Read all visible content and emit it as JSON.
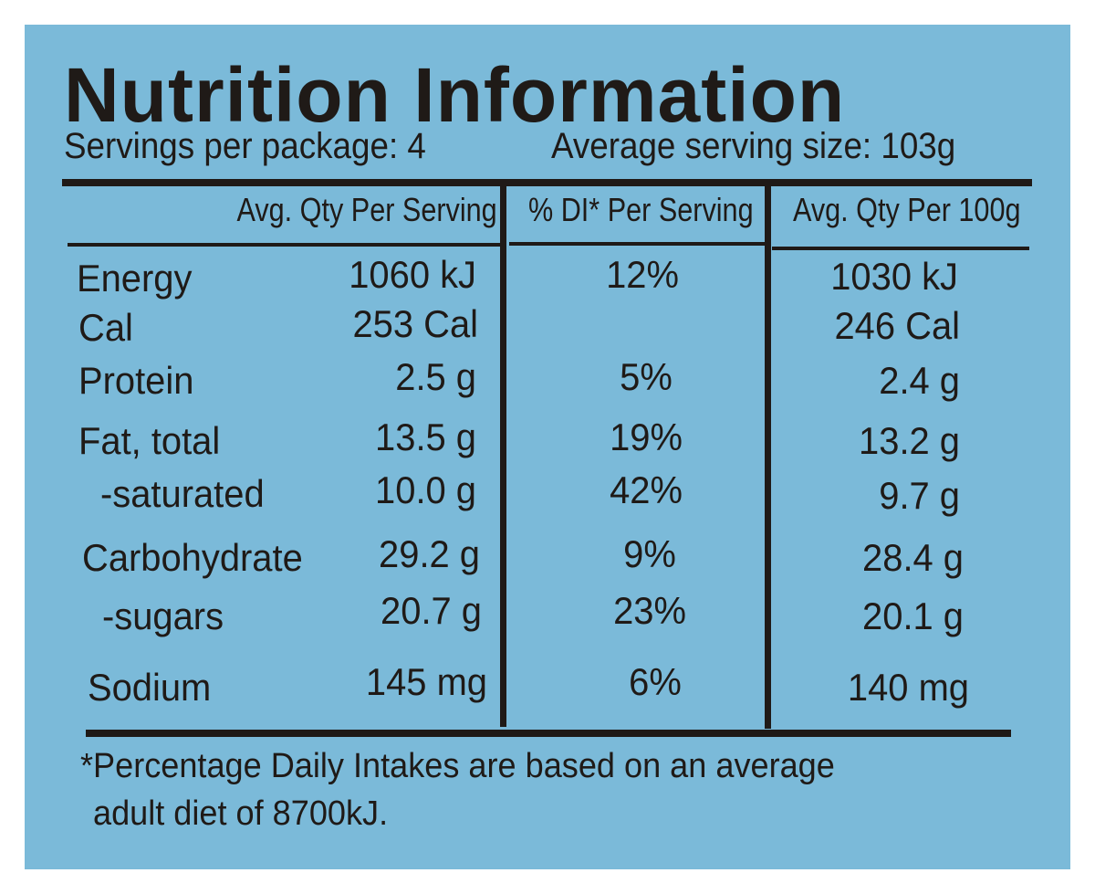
{
  "label": {
    "title": "Nutrition Information",
    "servings_per_package": "Servings per package: 4",
    "serving_size": "Average serving size: 103g",
    "columns": [
      "Avg. Qty Per Serving",
      "% DI* Per Serving",
      "Avg. Qty Per 100g"
    ],
    "rows": [
      {
        "name": "Energy",
        "per_serving": "1060 kJ",
        "di": "12%",
        "per_100g": "1030 kJ"
      },
      {
        "name": "Cal",
        "per_serving": "253 Cal",
        "di": "",
        "per_100g": "246 Cal"
      },
      {
        "name": "Protein",
        "per_serving": "2.5 g",
        "di": "5%",
        "per_100g": "2.4 g"
      },
      {
        "name": "Fat, total",
        "per_serving": "13.5 g",
        "di": "19%",
        "per_100g": "13.2 g"
      },
      {
        "name": "-saturated",
        "per_serving": "10.0 g",
        "di": "42%",
        "per_100g": "9.7 g"
      },
      {
        "name": "Carbohydrate",
        "per_serving": "29.2 g",
        "di": "9%",
        "per_100g": "28.4 g"
      },
      {
        "name": "-sugars",
        "per_serving": "20.7 g",
        "di": "23%",
        "per_100g": "20.1 g"
      },
      {
        "name": "Sodium",
        "per_serving": "145 mg",
        "di": "6%",
        "per_100g": "140 mg"
      }
    ],
    "footnote_line1": "*Percentage Daily Intakes are based on an average",
    "footnote_line2": "adult diet of 8700kJ.",
    "background_color": "#7bbad9",
    "ink_color": "#1f1a17"
  }
}
